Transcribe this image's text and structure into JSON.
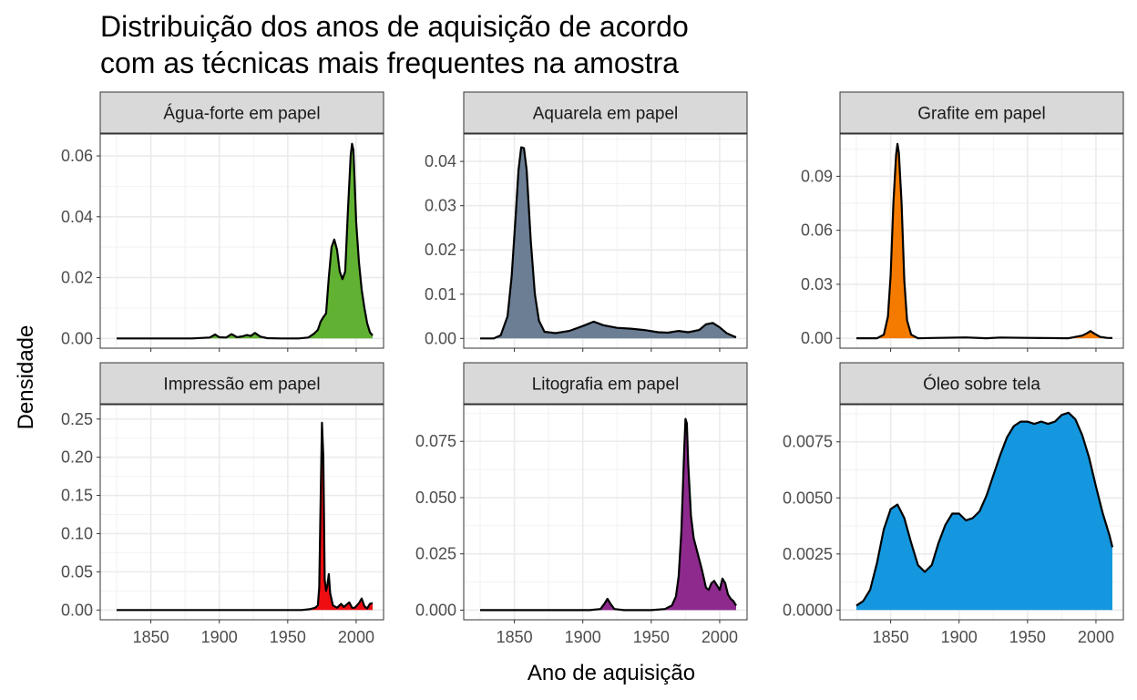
{
  "chart_data": {
    "type": "area",
    "title_lines": [
      "Distribuição dos anos de aquisição de acordo",
      "com as técnicas mais frequentes na amostra"
    ],
    "xlabel": "Ano de aquisição",
    "ylabel": "Densidade",
    "xlim": [
      1813,
      2020
    ],
    "x_ticks": [
      1850,
      1900,
      1950,
      2000
    ],
    "x_tick_labels": [
      "1850",
      "1900",
      "1950",
      "2000"
    ],
    "grid": true,
    "legend": "none",
    "facets": [
      {
        "name": "Água-forte em papel",
        "color": "#61B232",
        "ylim": [
          -0.0032,
          0.0672
        ],
        "y_ticks": [
          0,
          0.02,
          0.04,
          0.06
        ],
        "y_tick_labels": [
          "0.00",
          "0.02",
          "0.04",
          "0.06"
        ],
        "fill_from": 1825,
        "points": [
          [
            1825,
            0
          ],
          [
            1880,
            0
          ],
          [
            1893,
            0.0003
          ],
          [
            1897,
            0.0013
          ],
          [
            1900,
            0.0004
          ],
          [
            1905,
            0.0003
          ],
          [
            1909,
            0.0014
          ],
          [
            1913,
            0.0004
          ],
          [
            1917,
            0.0007
          ],
          [
            1920,
            0.0011
          ],
          [
            1923,
            0.0008
          ],
          [
            1926,
            0.0018
          ],
          [
            1930,
            0.0006
          ],
          [
            1935,
            0.0001
          ],
          [
            1945,
            0
          ],
          [
            1958,
            0
          ],
          [
            1965,
            0.0003
          ],
          [
            1969,
            0.0015
          ],
          [
            1972,
            0.0028
          ],
          [
            1974,
            0.0055
          ],
          [
            1976,
            0.007
          ],
          [
            1978,
            0.0082
          ],
          [
            1980,
            0.02
          ],
          [
            1982,
            0.03
          ],
          [
            1984,
            0.0325
          ],
          [
            1986,
            0.0292
          ],
          [
            1988,
            0.022
          ],
          [
            1990,
            0.0195
          ],
          [
            1992,
            0.022
          ],
          [
            1994,
            0.042
          ],
          [
            1996,
            0.06
          ],
          [
            1997,
            0.064
          ],
          [
            1998,
            0.062
          ],
          [
            2000,
            0.038
          ],
          [
            2002,
            0.025
          ],
          [
            2004,
            0.016
          ],
          [
            2006,
            0.01
          ],
          [
            2008,
            0.005
          ],
          [
            2010,
            0.002
          ],
          [
            2012,
            0.001
          ]
        ]
      },
      {
        "name": "Aquarela em papel",
        "color": "#6B7E94",
        "ylim": [
          -0.0022,
          0.0462
        ],
        "y_ticks": [
          0,
          0.01,
          0.02,
          0.03,
          0.04
        ],
        "y_tick_labels": [
          "0.00",
          "0.01",
          "0.02",
          "0.03",
          "0.04"
        ],
        "fill_from": 1825,
        "points": [
          [
            1825,
            0
          ],
          [
            1835,
            0
          ],
          [
            1840,
            0.0007
          ],
          [
            1845,
            0.005
          ],
          [
            1848,
            0.014
          ],
          [
            1851,
            0.028
          ],
          [
            1853,
            0.038
          ],
          [
            1855,
            0.0432
          ],
          [
            1857,
            0.043
          ],
          [
            1859,
            0.038
          ],
          [
            1862,
            0.022
          ],
          [
            1865,
            0.01
          ],
          [
            1868,
            0.004
          ],
          [
            1872,
            0.0015
          ],
          [
            1880,
            0.0012
          ],
          [
            1890,
            0.0017
          ],
          [
            1900,
            0.0028
          ],
          [
            1908,
            0.0038
          ],
          [
            1915,
            0.003
          ],
          [
            1925,
            0.0024
          ],
          [
            1935,
            0.0022
          ],
          [
            1945,
            0.0019
          ],
          [
            1955,
            0.0014
          ],
          [
            1962,
            0.0013
          ],
          [
            1970,
            0.0017
          ],
          [
            1977,
            0.0014
          ],
          [
            1985,
            0.0019
          ],
          [
            1990,
            0.0032
          ],
          [
            1995,
            0.0035
          ],
          [
            2000,
            0.0025
          ],
          [
            2005,
            0.0012
          ],
          [
            2010,
            0.0005
          ],
          [
            2012,
            0.0003
          ]
        ]
      },
      {
        "name": "Grafite em papel",
        "color": "#F57B00",
        "ylim": [
          -0.0055,
          0.1135
        ],
        "y_ticks": [
          0,
          0.03,
          0.06,
          0.09
        ],
        "y_tick_labels": [
          "0.00",
          "0.03",
          "0.06",
          "0.09"
        ],
        "fill_from": 1825,
        "points": [
          [
            1825,
            0
          ],
          [
            1840,
            0
          ],
          [
            1845,
            0.002
          ],
          [
            1848,
            0.012
          ],
          [
            1850,
            0.035
          ],
          [
            1852,
            0.075
          ],
          [
            1854,
            0.102
          ],
          [
            1855,
            0.108
          ],
          [
            1856,
            0.103
          ],
          [
            1858,
            0.075
          ],
          [
            1860,
            0.032
          ],
          [
            1862,
            0.01
          ],
          [
            1865,
            0.002
          ],
          [
            1870,
            0
          ],
          [
            1905,
            0.0005
          ],
          [
            1920,
            0
          ],
          [
            1930,
            0.0004
          ],
          [
            1950,
            0.0002
          ],
          [
            1980,
            0
          ],
          [
            1990,
            0.0015
          ],
          [
            1994,
            0.003
          ],
          [
            1996,
            0.004
          ],
          [
            1999,
            0.0025
          ],
          [
            2003,
            0.0008
          ],
          [
            2008,
            0.0002
          ],
          [
            2012,
            0.0001
          ]
        ]
      },
      {
        "name": "Impressão em papel",
        "color": "#EE0E12",
        "ylim": [
          -0.0128,
          0.2688
        ],
        "y_ticks": [
          0,
          0.05,
          0.1,
          0.15,
          0.2,
          0.25
        ],
        "y_tick_labels": [
          "0.00",
          "0.05",
          "0.10",
          "0.15",
          "0.20",
          "0.25"
        ],
        "fill_from": 1965,
        "points": [
          [
            1825,
            0
          ],
          [
            1960,
            0
          ],
          [
            1966,
            0.001
          ],
          [
            1970,
            0.003
          ],
          [
            1972,
            0.006
          ],
          [
            1973,
            0.03
          ],
          [
            1974,
            0.14
          ],
          [
            1975,
            0.245
          ],
          [
            1976,
            0.2
          ],
          [
            1977,
            0.04
          ],
          [
            1978,
            0.025
          ],
          [
            1979,
            0.033
          ],
          [
            1980,
            0.047
          ],
          [
            1981,
            0.022
          ],
          [
            1983,
            0.006
          ],
          [
            1986,
            0.003
          ],
          [
            1989,
            0.008
          ],
          [
            1991,
            0.004
          ],
          [
            1993,
            0.007
          ],
          [
            1995,
            0.01
          ],
          [
            1997,
            0.003
          ],
          [
            1999,
            0.003
          ],
          [
            2002,
            0.009
          ],
          [
            2004,
            0.015
          ],
          [
            2006,
            0.005
          ],
          [
            2008,
            0.002
          ],
          [
            2010,
            0.008
          ],
          [
            2012,
            0.009
          ]
        ]
      },
      {
        "name": "Litografia em papel",
        "color": "#8E2A8E",
        "ylim": [
          -0.0043,
          0.0913
        ],
        "y_ticks": [
          0,
          0.025,
          0.05,
          0.075
        ],
        "y_tick_labels": [
          "0.000",
          "0.025",
          "0.050",
          "0.075"
        ],
        "fill_from": 1825,
        "points": [
          [
            1825,
            0
          ],
          [
            1905,
            0
          ],
          [
            1913,
            0.0005
          ],
          [
            1916,
            0.003
          ],
          [
            1918,
            0.005
          ],
          [
            1920,
            0.003
          ],
          [
            1923,
            0.0005
          ],
          [
            1930,
            0
          ],
          [
            1950,
            0
          ],
          [
            1960,
            0.0005
          ],
          [
            1965,
            0.002
          ],
          [
            1968,
            0.006
          ],
          [
            1970,
            0.015
          ],
          [
            1972,
            0.035
          ],
          [
            1974,
            0.07
          ],
          [
            1975,
            0.085
          ],
          [
            1976,
            0.083
          ],
          [
            1977,
            0.065
          ],
          [
            1979,
            0.042
          ],
          [
            1981,
            0.032
          ],
          [
            1984,
            0.025
          ],
          [
            1987,
            0.018
          ],
          [
            1990,
            0.01
          ],
          [
            1992,
            0.009
          ],
          [
            1994,
            0.012
          ],
          [
            1996,
            0.013
          ],
          [
            1998,
            0.011
          ],
          [
            2000,
            0.009
          ],
          [
            2002,
            0.014
          ],
          [
            2004,
            0.012
          ],
          [
            2006,
            0.007
          ],
          [
            2008,
            0.005
          ],
          [
            2010,
            0.004
          ],
          [
            2012,
            0.002
          ]
        ]
      },
      {
        "name": "Óleo sobre tela",
        "color": "#1497DE",
        "ylim": [
          -0.000436,
          0.009156
        ],
        "y_ticks": [
          0,
          0.0025,
          0.005,
          0.0075
        ],
        "y_tick_labels": [
          "0.0000",
          "0.0025",
          "0.0050",
          "0.0075"
        ],
        "fill_from": 1825,
        "points": [
          [
            1825,
            0.0002
          ],
          [
            1830,
            0.0004
          ],
          [
            1835,
            0.0009
          ],
          [
            1840,
            0.0021
          ],
          [
            1845,
            0.0036
          ],
          [
            1850,
            0.0045
          ],
          [
            1855,
            0.0047
          ],
          [
            1860,
            0.0041
          ],
          [
            1865,
            0.003
          ],
          [
            1870,
            0.002
          ],
          [
            1875,
            0.0017
          ],
          [
            1880,
            0.002
          ],
          [
            1885,
            0.003
          ],
          [
            1890,
            0.0038
          ],
          [
            1895,
            0.0043
          ],
          [
            1900,
            0.0043
          ],
          [
            1905,
            0.004
          ],
          [
            1910,
            0.0041
          ],
          [
            1915,
            0.0044
          ],
          [
            1920,
            0.0051
          ],
          [
            1925,
            0.006
          ],
          [
            1930,
            0.0069
          ],
          [
            1935,
            0.0077
          ],
          [
            1940,
            0.0082
          ],
          [
            1945,
            0.0084
          ],
          [
            1950,
            0.0084
          ],
          [
            1955,
            0.0083
          ],
          [
            1960,
            0.0084
          ],
          [
            1965,
            0.0083
          ],
          [
            1970,
            0.0084
          ],
          [
            1975,
            0.0087
          ],
          [
            1980,
            0.0088
          ],
          [
            1985,
            0.0085
          ],
          [
            1990,
            0.0078
          ],
          [
            1995,
            0.0068
          ],
          [
            2000,
            0.0055
          ],
          [
            2005,
            0.0043
          ],
          [
            2010,
            0.0033
          ],
          [
            2012,
            0.0028
          ]
        ]
      }
    ]
  }
}
